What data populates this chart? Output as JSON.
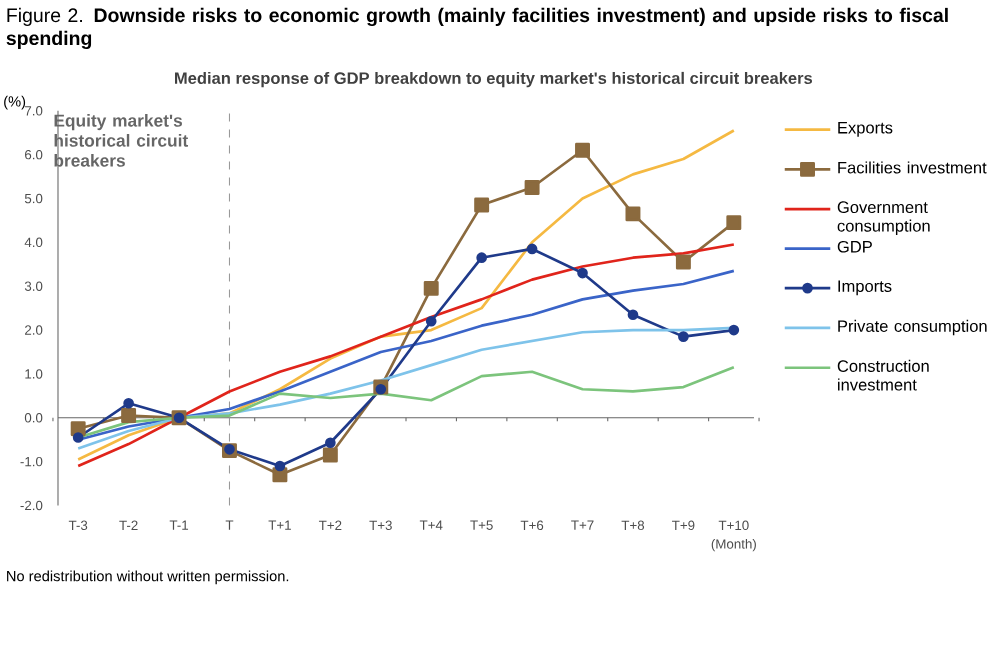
{
  "chart_data": {
    "type": "line",
    "title": "Figure 2. **Downside risks to economic growth (mainly facilities investment) and upside risks to fiscal spending**",
    "subtitle": "Median response of GDP breakdown to equity market's historical circuit breakers",
    "ylabel": "(%)",
    "xlabel": "(Month)",
    "categories": [
      "T-3",
      "T-2",
      "T-1",
      "T",
      "T+1",
      "T+2",
      "T+3",
      "T+4",
      "T+5",
      "T+6",
      "T+7",
      "T+8",
      "T+9",
      "T+10"
    ],
    "series": [
      {
        "name": "Exports",
        "color": "#f5b942",
        "values": [
          -0.95,
          -0.4,
          0,
          0.1,
          0.65,
          1.35,
          1.85,
          2.0,
          2.5,
          4.0,
          5.0,
          5.55,
          5.9,
          6.55
        ]
      },
      {
        "name": "Facilities investment",
        "color": "#8b6a3e",
        "marker": "square",
        "values": [
          -0.25,
          0.05,
          0,
          -0.75,
          -1.3,
          -0.85,
          0.7,
          2.95,
          4.85,
          5.25,
          6.1,
          4.65,
          3.55,
          4.45
        ]
      },
      {
        "name": "Government consumption",
        "color": "#e0241b",
        "values": [
          -1.1,
          -0.6,
          0,
          0.6,
          1.05,
          1.4,
          1.85,
          2.3,
          2.7,
          3.15,
          3.45,
          3.65,
          3.75,
          3.95
        ]
      },
      {
        "name": "GDP",
        "color": "#3a64c8",
        "values": [
          -0.5,
          -0.2,
          0,
          0.2,
          0.6,
          1.05,
          1.5,
          1.75,
          2.1,
          2.35,
          2.7,
          2.9,
          3.05,
          3.35
        ]
      },
      {
        "name": "Imports",
        "color": "#1f3a8a",
        "marker": "circle",
        "values": [
          -0.45,
          0.33,
          0,
          -0.72,
          -1.1,
          -0.57,
          0.65,
          2.2,
          3.65,
          3.85,
          3.3,
          2.35,
          1.85,
          2.0
        ]
      },
      {
        "name": "Private consumption",
        "color": "#7ec3ea",
        "values": [
          -0.7,
          -0.3,
          0,
          0.1,
          0.3,
          0.55,
          0.85,
          1.2,
          1.55,
          1.75,
          1.95,
          2.0,
          2.0,
          2.05
        ]
      },
      {
        "name": "Construction investment",
        "color": "#7cc47c",
        "values": [
          -0.45,
          -0.1,
          0,
          0.05,
          0.55,
          0.45,
          0.55,
          0.4,
          0.95,
          1.05,
          0.65,
          0.6,
          0.7,
          1.15
        ]
      }
    ],
    "ylim": [
      -2,
      7
    ],
    "yticks": [
      {
        "value": -2,
        "label": "-2.0"
      },
      {
        "value": -1,
        "label": "-1.0"
      },
      {
        "value": 0,
        "label": "0.0"
      },
      {
        "value": 1,
        "label": "1.0"
      },
      {
        "value": 2,
        "label": "2.0"
      },
      {
        "value": 3,
        "label": "3.0"
      },
      {
        "value": 4,
        "label": "4.0"
      },
      {
        "value": 5,
        "label": "5.0"
      },
      {
        "value": 6,
        "label": "6.0"
      },
      {
        "value": 7,
        "label": "7.0"
      }
    ],
    "ref_lines": [
      {
        "axis": "x",
        "value": "T",
        "label": "Equity market's historical circuit breakers",
        "color": "#999999",
        "line_style": "dashed"
      }
    ],
    "marker": "none",
    "line_style": "solid",
    "grid": false,
    "legend": "right",
    "annotations": [
      "No redistribution without written permission."
    ]
  }
}
